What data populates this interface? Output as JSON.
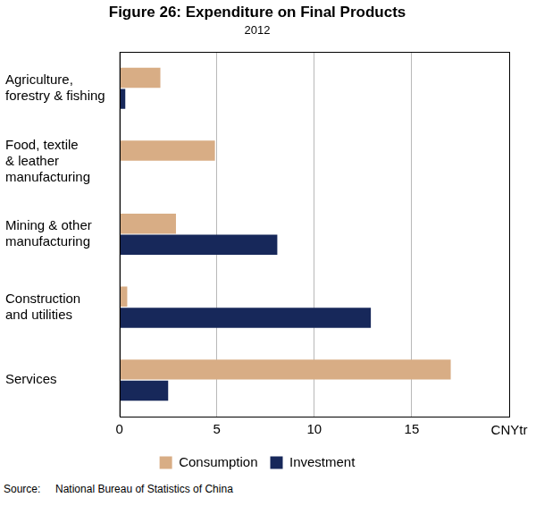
{
  "chart_data": {
    "type": "bar",
    "orientation": "horizontal",
    "title": "Figure 26: Expenditure on Final Products",
    "subtitle": "2012",
    "x_label": "CNYtr",
    "source": "Source:     National Bureau of Statistics of China",
    "categories": [
      "Agriculture,\nforestry & fishing",
      "Food, textile\n& leather\nmanufacturing",
      "Mining & other\nmanufacturing",
      "Construction\nand utilities",
      "Services"
    ],
    "series": [
      {
        "name": "Consumption",
        "color": "#d8ad85",
        "values": [
          2.1,
          4.9,
          2.9,
          0.4,
          17.0
        ]
      },
      {
        "name": "Investment",
        "color": "#17285a",
        "values": [
          0.3,
          0,
          8.1,
          12.9,
          2.5
        ]
      }
    ],
    "xlim": [
      0,
      20
    ],
    "xticks": [
      0,
      5,
      10,
      15
    ],
    "grid": true,
    "legend": "bottom",
    "data_labels": false
  }
}
